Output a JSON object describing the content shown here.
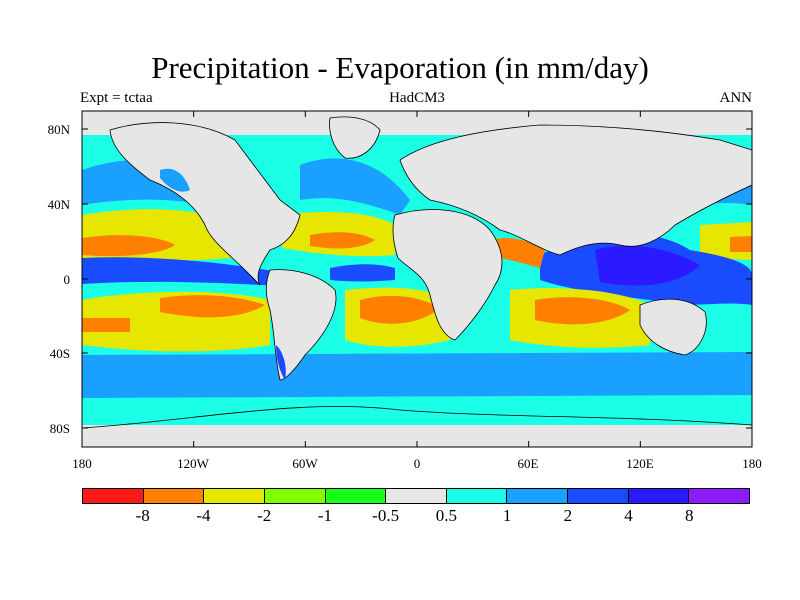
{
  "title": "Precipitation - Evaporation (in mm/day)",
  "subtitle_left": "Expt = tctaa",
  "subtitle_center": "HadCM3",
  "subtitle_right": "ANN",
  "y_ticks": [
    "80N",
    "40N",
    "0",
    "40S",
    "80S"
  ],
  "x_ticks": [
    "180",
    "120W",
    "60W",
    "0",
    "60E",
    "120E",
    "180"
  ],
  "colorbar": {
    "colors": [
      "#ff1a1a",
      "#ff8000",
      "#e6e600",
      "#80ff00",
      "#1aff1a",
      "#e6e6e6",
      "#1affe6",
      "#1aa0ff",
      "#1a4cff",
      "#2b1aff",
      "#8c1aff"
    ],
    "labels": [
      "-8",
      "-4",
      "-2",
      "-1",
      "-0.5",
      "0.5",
      "1",
      "2",
      "4",
      "8"
    ]
  }
}
